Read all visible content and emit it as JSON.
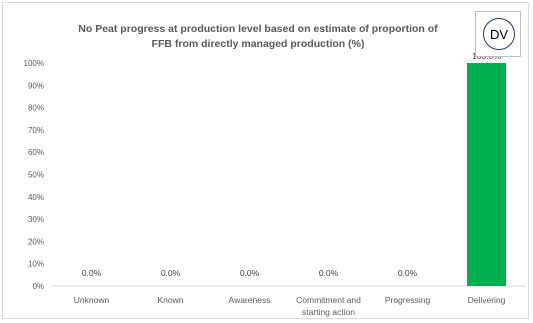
{
  "badge": {
    "text": "DV"
  },
  "chart_data": {
    "type": "bar",
    "title": "No Peat progress at production level based on estimate of proportion of FFB from directly managed production (%)",
    "title_lines": [
      "No Peat progress at production level based on estimate of proportion of",
      "FFB from directly managed production (%)"
    ],
    "categories": [
      "Unknown",
      "Known",
      "Awareness",
      "Commitment and starting action",
      "Progressing",
      "Delivering"
    ],
    "category_lines": [
      [
        "Unknown"
      ],
      [
        "Known"
      ],
      [
        "Awareness"
      ],
      [
        "Commitment and",
        "starting action"
      ],
      [
        "Progressing"
      ],
      [
        "Delivering"
      ]
    ],
    "values": [
      0.0,
      0.0,
      0.0,
      0.0,
      0.0,
      100.0
    ],
    "data_labels": [
      "0.0%",
      "0.0%",
      "0.0%",
      "0.0%",
      "0.0%",
      "100.0%"
    ],
    "ylim": [
      0,
      100
    ],
    "yticks": [
      "0%",
      "10%",
      "20%",
      "30%",
      "40%",
      "50%",
      "60%",
      "70%",
      "80%",
      "90%",
      "100%"
    ],
    "xlabel": "",
    "ylabel": "",
    "grid": false,
    "legend": false,
    "bar_color": "#00b050"
  }
}
